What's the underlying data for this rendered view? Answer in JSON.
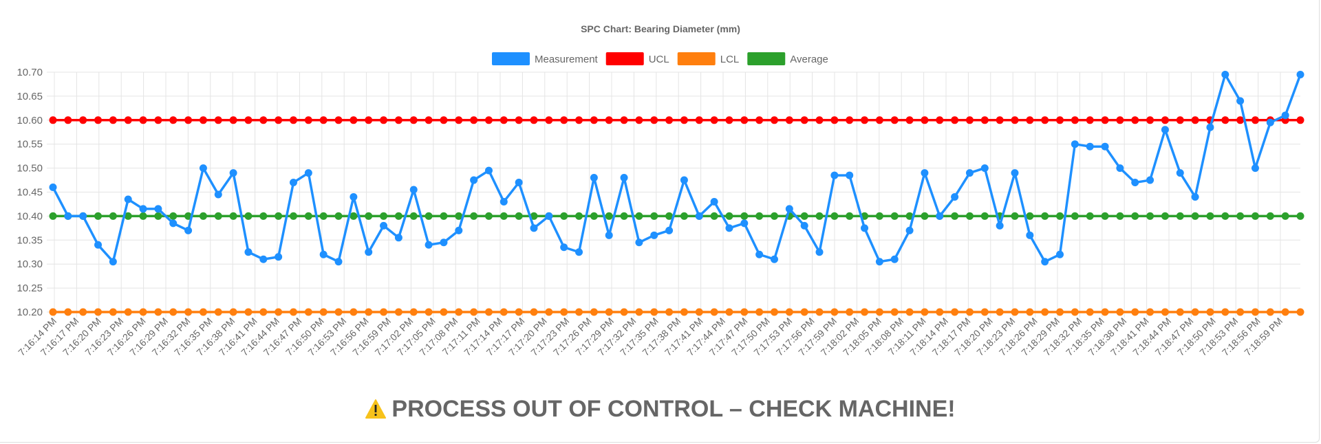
{
  "chart_data": {
    "type": "line",
    "title": "SPC Chart: Bearing Diameter (mm)",
    "legend_position": "top",
    "grid": true,
    "ylim": [
      10.2,
      10.7
    ],
    "yticks": [
      "10.70",
      "10.65",
      "10.60",
      "10.55",
      "10.50",
      "10.45",
      "10.40",
      "10.35",
      "10.30",
      "10.25",
      "10.20"
    ],
    "xticks": [
      "7:16:14 PM",
      "7:16:17 PM",
      "7:16:20 PM",
      "7:16:23 PM",
      "7:16:26 PM",
      "7:16:29 PM",
      "7:16:32 PM",
      "7:16:35 PM",
      "7:16:38 PM",
      "7:16:41 PM",
      "7:16:44 PM",
      "7:16:47 PM",
      "7:16:50 PM",
      "7:16:53 PM",
      "7:16:56 PM",
      "7:16:59 PM",
      "7:17:02 PM",
      "7:17:05 PM",
      "7:17:08 PM",
      "7:17:11 PM",
      "7:17:14 PM",
      "7:17:17 PM",
      "7:17:20 PM",
      "7:17:23 PM",
      "7:17:26 PM",
      "7:17:29 PM",
      "7:17:32 PM",
      "7:17:35 PM",
      "7:17:38 PM",
      "7:17:41 PM",
      "7:17:44 PM",
      "7:17:47 PM",
      "7:17:50 PM",
      "7:17:53 PM",
      "7:17:56 PM",
      "7:17:59 PM",
      "7:18:02 PM",
      "7:18:05 PM",
      "7:18:08 PM",
      "7:18:11 PM",
      "7:18:14 PM",
      "7:18:17 PM",
      "7:18:20 PM",
      "7:18:23 PM",
      "7:18:26 PM",
      "7:18:29 PM",
      "7:18:32 PM",
      "7:18:35 PM",
      "7:18:38 PM",
      "7:18:41 PM",
      "7:18:44 PM",
      "7:18:47 PM",
      "7:18:50 PM",
      "7:18:53 PM",
      "7:18:56 PM",
      "7:18:59 PM"
    ],
    "series": [
      {
        "name": "Measurement",
        "color": "#1e90ff",
        "values": [
          10.46,
          10.4,
          10.4,
          10.34,
          10.305,
          10.435,
          10.415,
          10.415,
          10.385,
          10.37,
          10.5,
          10.445,
          10.49,
          10.325,
          10.31,
          10.315,
          10.47,
          10.49,
          10.32,
          10.305,
          10.44,
          10.325,
          10.38,
          10.355,
          10.455,
          10.34,
          10.345,
          10.37,
          10.475,
          10.495,
          10.43,
          10.47,
          10.375,
          10.4,
          10.335,
          10.325,
          10.48,
          10.36,
          10.48,
          10.345,
          10.36,
          10.37,
          10.475,
          10.4,
          10.43,
          10.375,
          10.385,
          10.32,
          10.31,
          10.415,
          10.38,
          10.325,
          10.485,
          10.485,
          10.375,
          10.305,
          10.31,
          10.37,
          10.49,
          10.4,
          10.44,
          10.49,
          10.5,
          10.38,
          10.49,
          10.36,
          10.305,
          10.32,
          10.55,
          10.545,
          10.545,
          10.5,
          10.47,
          10.475,
          10.58,
          10.49,
          10.44,
          10.585,
          10.695,
          10.64,
          10.5,
          10.595,
          10.61,
          10.695
        ]
      },
      {
        "name": "UCL",
        "color": "#ff0000",
        "constant": 10.6
      },
      {
        "name": "LCL",
        "color": "#ff7f0e",
        "constant": 10.2
      },
      {
        "name": "Average",
        "color": "#2ca02c",
        "constant": 10.4
      }
    ]
  },
  "alert": {
    "icon": "warning-icon",
    "text": "PROCESS OUT OF CONTROL – CHECK MACHINE!"
  }
}
